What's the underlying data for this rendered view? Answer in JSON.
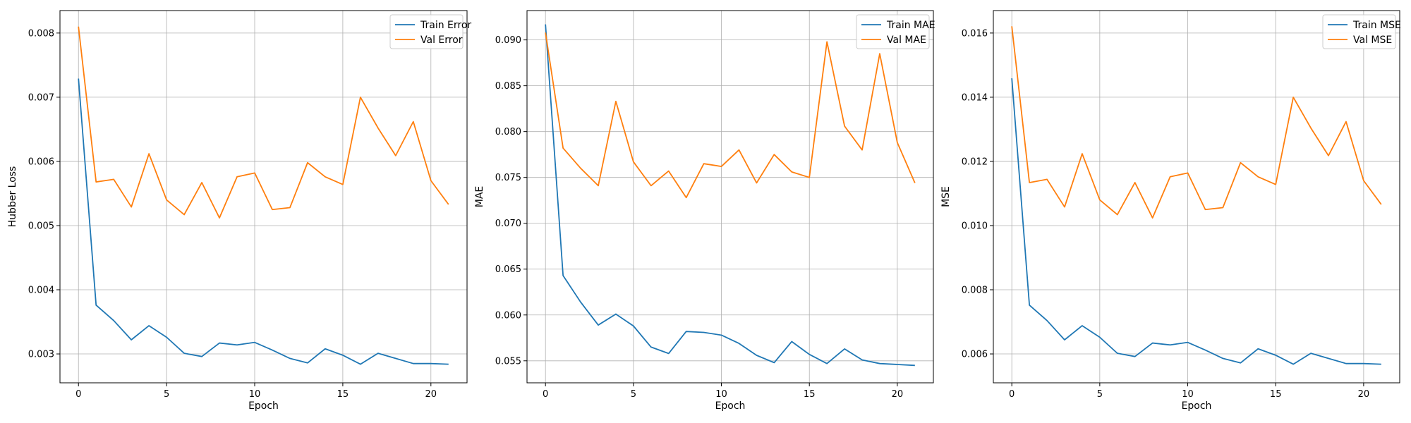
{
  "chart_data": [
    {
      "type": "line",
      "xlabel": "Epoch",
      "ylabel": "Hubber Loss",
      "xlim": [
        -1.05,
        22.05
      ],
      "ylim": [
        0.00255,
        0.00835
      ],
      "xticks": [
        0,
        5,
        10,
        15,
        20
      ],
      "xtick_labels": [
        "0",
        "5",
        "10",
        "15",
        "20"
      ],
      "yticks": [
        0.003,
        0.004,
        0.005,
        0.006,
        0.007,
        0.008
      ],
      "ytick_labels": [
        "0.003",
        "0.004",
        "0.005",
        "0.006",
        "0.007",
        "0.008"
      ],
      "grid": true,
      "legend_position": "top-right",
      "x": [
        0,
        1,
        2,
        3,
        4,
        5,
        6,
        7,
        8,
        9,
        10,
        11,
        12,
        13,
        14,
        15,
        16,
        17,
        18,
        19,
        20,
        21
      ],
      "series": [
        {
          "name": "Train Error",
          "color": "#1f77b4",
          "values": [
            0.00729,
            0.00376,
            0.00352,
            0.00322,
            0.00344,
            0.00326,
            0.00301,
            0.00296,
            0.00317,
            0.00314,
            0.00318,
            0.00306,
            0.00293,
            0.00286,
            0.00308,
            0.00298,
            0.00284,
            0.00301,
            0.00293,
            0.00285,
            0.00285,
            0.00284
          ]
        },
        {
          "name": "Val Error",
          "color": "#ff7f0e",
          "values": [
            0.0081,
            0.00568,
            0.00572,
            0.00529,
            0.00612,
            0.0054,
            0.00517,
            0.00567,
            0.00512,
            0.00576,
            0.00582,
            0.00525,
            0.00528,
            0.00598,
            0.00576,
            0.00564,
            0.007,
            0.00652,
            0.00609,
            0.00662,
            0.0057,
            0.00533
          ]
        }
      ]
    },
    {
      "type": "line",
      "xlabel": "Epoch",
      "ylabel": "MAE",
      "xlim": [
        -1.05,
        22.05
      ],
      "ylim": [
        0.0526,
        0.0932
      ],
      "xticks": [
        0,
        5,
        10,
        15,
        20
      ],
      "xtick_labels": [
        "0",
        "5",
        "10",
        "15",
        "20"
      ],
      "yticks": [
        0.055,
        0.06,
        0.065,
        0.07,
        0.075,
        0.08,
        0.085,
        0.09
      ],
      "ytick_labels": [
        "0.055",
        "0.060",
        "0.065",
        "0.070",
        "0.075",
        "0.080",
        "0.085",
        "0.090"
      ],
      "grid": true,
      "legend_position": "top-right",
      "x": [
        0,
        1,
        2,
        3,
        4,
        5,
        6,
        7,
        8,
        9,
        10,
        11,
        12,
        13,
        14,
        15,
        16,
        17,
        18,
        19,
        20,
        21
      ],
      "series": [
        {
          "name": "Train MAE",
          "color": "#1f77b4",
          "values": [
            0.0917,
            0.0643,
            0.0614,
            0.0589,
            0.0601,
            0.0588,
            0.0565,
            0.0558,
            0.0582,
            0.0581,
            0.0578,
            0.0569,
            0.0556,
            0.0548,
            0.0571,
            0.0557,
            0.0547,
            0.0563,
            0.0551,
            0.0547,
            0.0546,
            0.0545
          ]
        },
        {
          "name": "Val MAE",
          "color": "#ff7f0e",
          "values": [
            0.0908,
            0.0782,
            0.076,
            0.0741,
            0.0833,
            0.0767,
            0.0741,
            0.0757,
            0.0728,
            0.0765,
            0.0762,
            0.078,
            0.0744,
            0.0775,
            0.0756,
            0.075,
            0.0898,
            0.0806,
            0.078,
            0.0885,
            0.0788,
            0.0744
          ]
        }
      ]
    },
    {
      "type": "line",
      "xlabel": "Epoch",
      "ylabel": "MSE",
      "xlim": [
        -1.05,
        22.05
      ],
      "ylim": [
        0.0051,
        0.0167
      ],
      "xticks": [
        0,
        5,
        10,
        15,
        20
      ],
      "xtick_labels": [
        "0",
        "5",
        "10",
        "15",
        "20"
      ],
      "yticks": [
        0.006,
        0.008,
        0.01,
        0.012,
        0.014,
        0.016
      ],
      "ytick_labels": [
        "0.006",
        "0.008",
        "0.010",
        "0.012",
        "0.014",
        "0.016"
      ],
      "grid": true,
      "legend_position": "top-right",
      "x": [
        0,
        1,
        2,
        3,
        4,
        5,
        6,
        7,
        8,
        9,
        10,
        11,
        12,
        13,
        14,
        15,
        16,
        17,
        18,
        19,
        20,
        21
      ],
      "series": [
        {
          "name": "Train MSE",
          "color": "#1f77b4",
          "values": [
            0.01459,
            0.00752,
            0.00704,
            0.00644,
            0.00688,
            0.00652,
            0.00602,
            0.00592,
            0.00634,
            0.00628,
            0.00636,
            0.00612,
            0.00586,
            0.00572,
            0.00616,
            0.00596,
            0.00568,
            0.00602,
            0.00586,
            0.0057,
            0.0057,
            0.00568
          ]
        },
        {
          "name": "Val MSE",
          "color": "#ff7f0e",
          "values": [
            0.01621,
            0.01134,
            0.01144,
            0.01058,
            0.01224,
            0.0108,
            0.01034,
            0.01134,
            0.01024,
            0.01152,
            0.01164,
            0.0105,
            0.01056,
            0.01196,
            0.01152,
            0.01128,
            0.014,
            0.01304,
            0.01218,
            0.01324,
            0.0114,
            0.01066
          ]
        }
      ]
    }
  ]
}
